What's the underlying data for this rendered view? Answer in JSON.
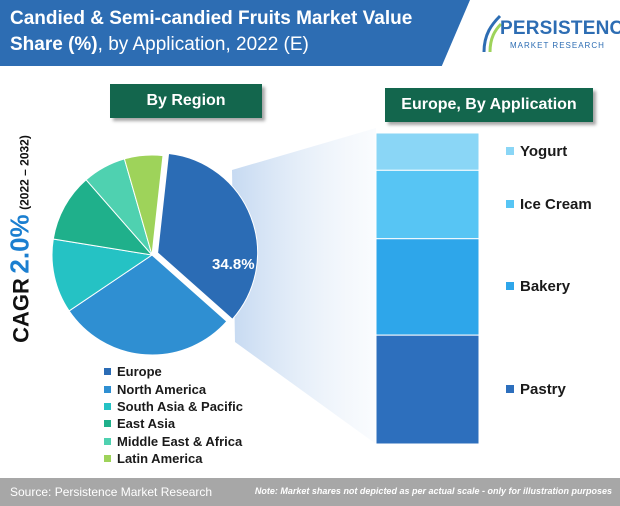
{
  "title": {
    "line1": "Candied & Semi-candied Fruits Market Value",
    "line2_bold": "Share (%)",
    "line2_rest": ", by Application, 2022 (E)"
  },
  "logo": {
    "name": "PERSISTENCE",
    "sub": "MARKET RESEARCH"
  },
  "cagr": {
    "word": "CAGR",
    "value": "2.0%",
    "period": "(2022 – 2032)"
  },
  "colors": {
    "title_band": "#2d6db3",
    "badge": "#13664d",
    "footer": "#a7a7a7",
    "cagr_value": "#1b7fd0"
  },
  "chart_data": [
    {
      "type": "pie",
      "title": "By Region",
      "categories": [
        "Europe",
        "North America",
        "South Asia & Pacific",
        "East Asia",
        "Middle East & Africa",
        "Latin America"
      ],
      "values": [
        34.8,
        29,
        12,
        11,
        7,
        6.2
      ],
      "colors": [
        "#2b6cb5",
        "#2f8fd2",
        "#25c2c4",
        "#1fb08b",
        "#4fd1b0",
        "#9ed35a"
      ],
      "data_labels": [
        {
          "category": "Europe",
          "text": "34.8%"
        }
      ],
      "legend_position": "bottom"
    },
    {
      "type": "bar",
      "stacked": true,
      "title": "Europe, By Application",
      "categories": [
        "Yogurt",
        "Ice Cream",
        "Bakery",
        "Pastry"
      ],
      "values": [
        12,
        22,
        31,
        35
      ],
      "colors": [
        "#8ad6f6",
        "#57c5f4",
        "#2ea6ea",
        "#2d6fbd"
      ],
      "legend_position": "right"
    }
  ],
  "footer": {
    "source": "Source: Persistence Market Research",
    "note": "Note: Market shares not depicted as per actual scale - only for illustration purposes"
  }
}
